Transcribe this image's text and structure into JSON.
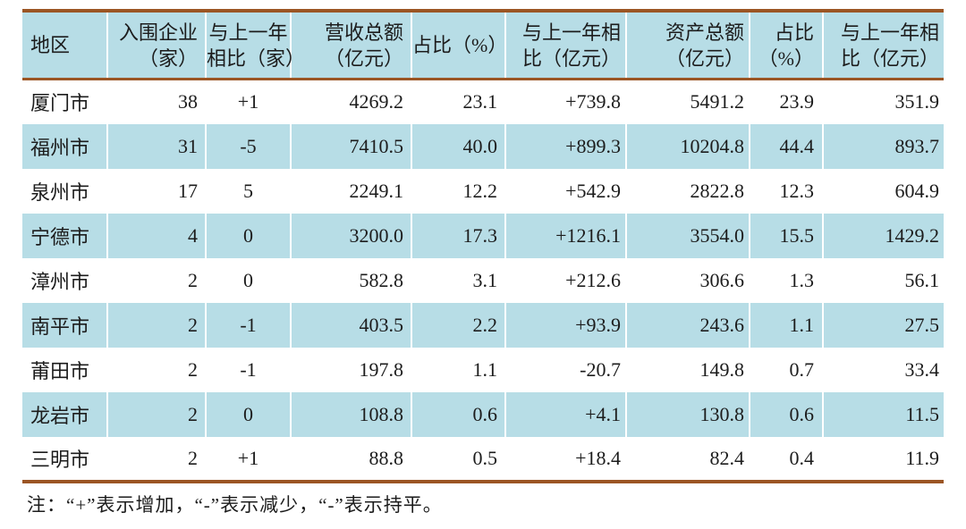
{
  "table": {
    "columns": [
      {
        "label_lines": [
          "地区"
        ]
      },
      {
        "label_lines": [
          "入围企业",
          "（家）"
        ]
      },
      {
        "label_lines": [
          "与上一年",
          "相比（家）"
        ]
      },
      {
        "label_lines": [
          "营收总额",
          "（亿元）"
        ]
      },
      {
        "label_lines": [
          "占比（%）"
        ]
      },
      {
        "label_lines": [
          "与上一年相",
          "比（亿元）"
        ]
      },
      {
        "label_lines": [
          "资产总额",
          "（亿元）"
        ]
      },
      {
        "label_lines": [
          "占比",
          "（%）"
        ]
      },
      {
        "label_lines": [
          "与上一年相",
          "比（亿元）"
        ]
      }
    ],
    "rows": [
      [
        "厦门市",
        "38",
        "+1",
        "4269.2",
        "23.1",
        "+739.8",
        "5491.2",
        "23.9",
        "351.9"
      ],
      [
        "福州市",
        "31",
        "-5",
        "7410.5",
        "40.0",
        "+899.3",
        "10204.8",
        "44.4",
        "893.7"
      ],
      [
        "泉州市",
        "17",
        "5",
        "2249.1",
        "12.2",
        "+542.9",
        "2822.8",
        "12.3",
        "604.9"
      ],
      [
        "宁德市",
        "4",
        "0",
        "3200.0",
        "17.3",
        "+1216.1",
        "3554.0",
        "15.5",
        "1429.2"
      ],
      [
        "漳州市",
        "2",
        "0",
        "582.8",
        "3.1",
        "+212.6",
        "306.6",
        "1.3",
        "56.1"
      ],
      [
        "南平市",
        "2",
        "-1",
        "403.5",
        "2.2",
        "+93.9",
        "243.6",
        "1.1",
        "27.5"
      ],
      [
        "莆田市",
        "2",
        "-1",
        "197.8",
        "1.1",
        "-20.7",
        "149.8",
        "0.7",
        "33.4"
      ],
      [
        "龙岩市",
        "2",
        "0",
        "108.8",
        "0.6",
        "+4.1",
        "130.8",
        "0.6",
        "11.5"
      ],
      [
        "三明市",
        "2",
        "+1",
        "88.8",
        "0.5",
        "+18.4",
        "82.4",
        "0.4",
        "11.9"
      ]
    ]
  },
  "note": "注：“+”表示增加，“-”表示减少，“-”表示持平。",
  "colors": {
    "header_bg": "#b7dde6",
    "row_alt_bg": "#b7dde6",
    "border": "#9b5524",
    "separator": "#ffffff",
    "text": "#1c1c1c"
  }
}
